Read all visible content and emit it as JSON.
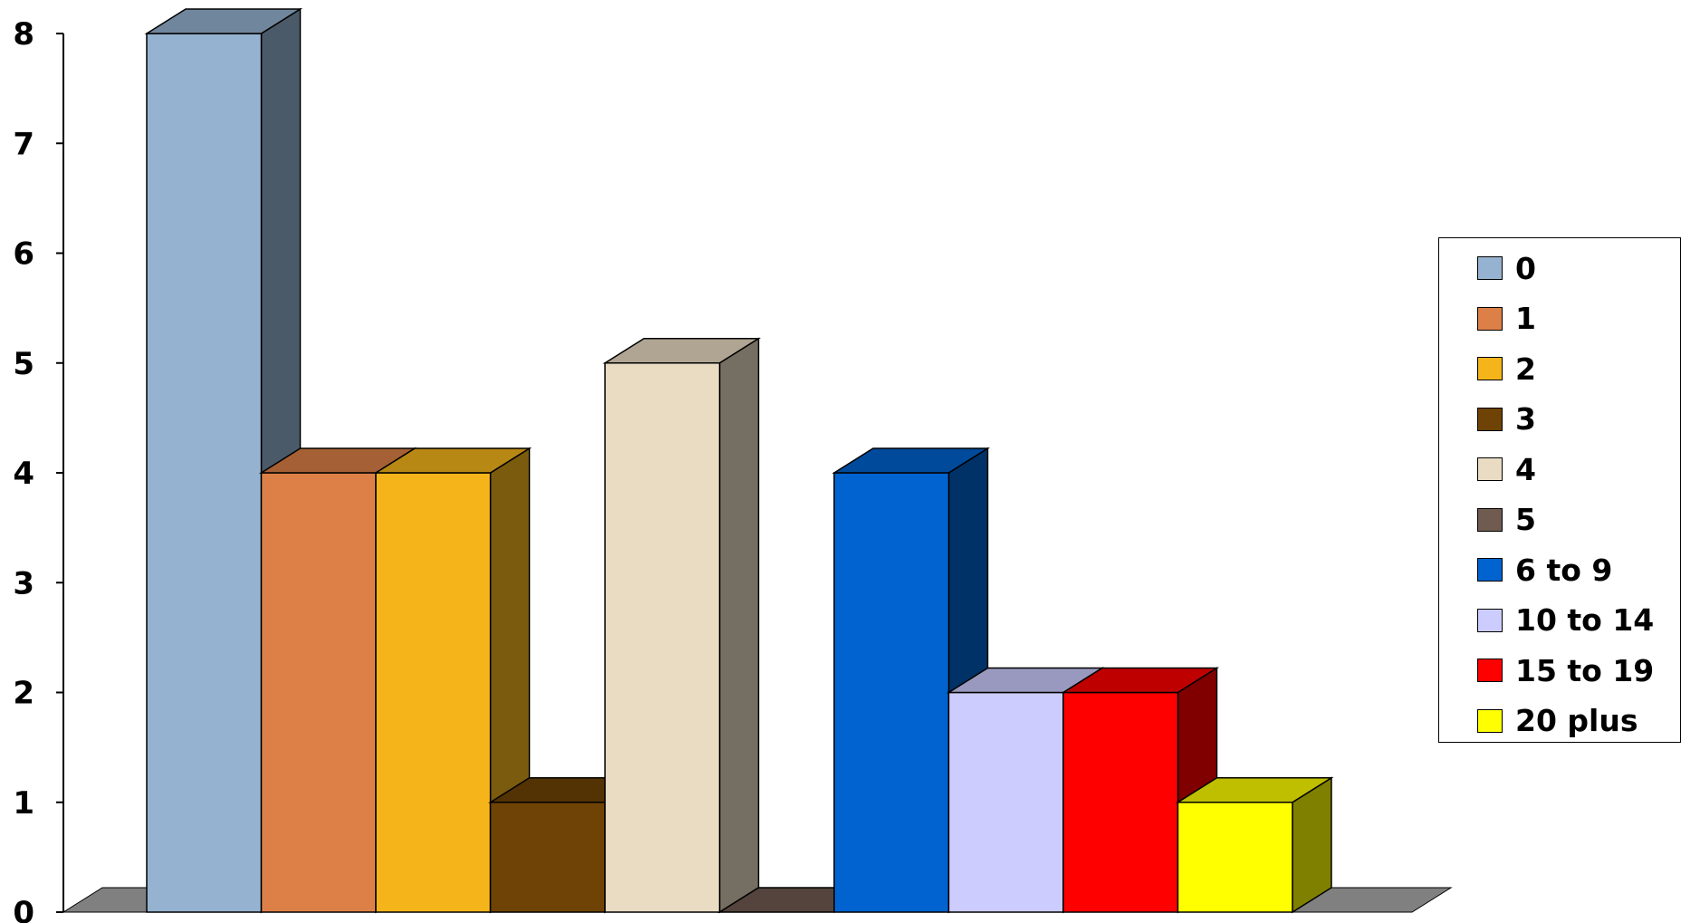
{
  "chart_data": {
    "type": "bar",
    "categories": [
      "0",
      "1",
      "2",
      "3",
      "4",
      "5",
      "6 to 9",
      "10 to 14",
      "15 to 19",
      "20 plus"
    ],
    "values": [
      8,
      4,
      4,
      1,
      5,
      0,
      4,
      2,
      2,
      1
    ],
    "colors": [
      "#95B3D0",
      "#DD8047",
      "#F5B51A",
      "#6F4305",
      "#E9DCC3",
      "#705B51",
      "#0063D0",
      "#CCCCFF",
      "#FF0000",
      "#FFFF00"
    ],
    "y_ticks": [
      "0",
      "1",
      "2",
      "3",
      "4",
      "5",
      "6",
      "7",
      "8"
    ],
    "ylim": [
      0,
      8
    ],
    "title": "",
    "xlabel": "",
    "ylabel": "",
    "grid": false,
    "style": "3d",
    "legend": {
      "position": "right",
      "items": [
        "0",
        "1",
        "2",
        "3",
        "4",
        "5",
        "6 to 9",
        "10 to 14",
        "15 to 19",
        "20 plus"
      ]
    }
  }
}
